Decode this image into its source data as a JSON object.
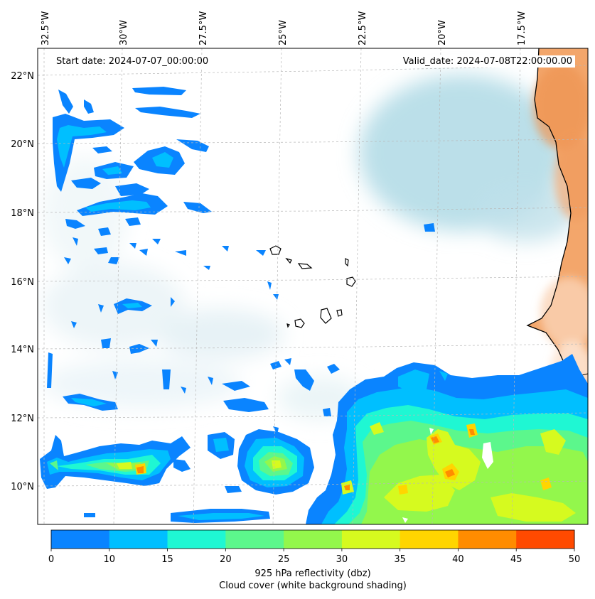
{
  "header": {
    "start_date": "Start date: 2024-07-07_00:00:00",
    "valid_date": "Valid_date: 2024-07-08T22:00:00.00"
  },
  "map": {
    "lon_labels": [
      "32.5°W",
      "30°W",
      "27.5°W",
      "25°W",
      "22.5°W",
      "20°W",
      "17.5°W"
    ],
    "lat_labels": [
      "22°N",
      "20°N",
      "18°N",
      "16°N",
      "14°N",
      "12°N",
      "10°N"
    ],
    "land_color": "#f2a76c",
    "cloud_color": "#b9dde8"
  },
  "colorbar": {
    "ticks": [
      "0",
      "10",
      "15",
      "20",
      "25",
      "30",
      "35",
      "40",
      "45",
      "50"
    ],
    "colors": [
      "#0a84ff",
      "#00bfff",
      "#1ff7d3",
      "#5cf78c",
      "#93f74c",
      "#d6fa1f",
      "#ffd500",
      "#ff8c00",
      "#ff4a00"
    ],
    "label": "925 hPa reflectivity (dbz)",
    "sublabel": "Cloud cover (white background shading)"
  }
}
